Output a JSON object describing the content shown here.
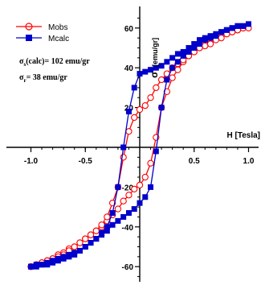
{
  "chart_data": {
    "type": "line",
    "xlabel": "H [Tesla]",
    "ylabel_main": "σ",
    "ylabel_unit": "[emu/gr]",
    "xlim": [
      -1.15,
      1.15
    ],
    "ylim": [
      -68,
      68
    ],
    "x_ticks": [
      "-1.0",
      "-0.5",
      "0.5",
      "1.0"
    ],
    "x_tick_values": [
      -1.0,
      -0.5,
      0.5,
      1.0
    ],
    "y_ticks": [
      "60",
      "40",
      "20",
      "-20",
      "-40",
      "-60"
    ],
    "y_tick_values": [
      60,
      40,
      20,
      -20,
      -40,
      -60
    ],
    "annotations": [
      {
        "main": "σ",
        "sub": "s",
        "text": "(calc)= 102 emu/gr"
      },
      {
        "main": "σ",
        "sub": "r",
        "text": "= 38 emu/gr"
      }
    ],
    "legend_position": "top-left",
    "series": [
      {
        "name": "Mobs",
        "color": "#ff0000",
        "marker": "open-circle",
        "x": [
          -1.0,
          -0.95,
          -0.9,
          -0.85,
          -0.8,
          -0.75,
          -0.7,
          -0.65,
          -0.6,
          -0.55,
          -0.5,
          -0.45,
          -0.4,
          -0.35,
          -0.3,
          -0.25,
          -0.2,
          -0.15,
          -0.1,
          -0.05,
          0.0,
          0.05,
          0.1,
          0.15,
          0.2,
          0.25,
          0.3,
          0.35,
          0.4,
          0.45,
          0.5,
          0.55,
          0.6,
          0.65,
          0.7,
          0.75,
          0.8,
          0.85,
          0.9,
          0.95,
          1.0,
          0.95,
          0.9,
          0.85,
          0.8,
          0.75,
          0.7,
          0.65,
          0.6,
          0.55,
          0.5,
          0.45,
          0.4,
          0.35,
          0.3,
          0.25,
          0.2,
          0.15,
          0.1,
          0.05,
          0.0,
          -0.05,
          -0.1,
          -0.15,
          -0.2,
          -0.25,
          -0.3,
          -0.35,
          -0.4,
          -0.45,
          -0.5,
          -0.55,
          -0.6,
          -0.65,
          -0.7,
          -0.75,
          -0.8,
          -0.85,
          -0.9,
          -0.95,
          -1.0
        ],
        "y": [
          -60,
          -59,
          -58,
          -57,
          -56,
          -54,
          -53,
          -51,
          -50,
          -48,
          -46,
          -44,
          -42,
          -40,
          -37,
          -34,
          -31,
          -27,
          -24,
          -21,
          -19,
          -15,
          -8,
          5,
          20,
          28,
          35,
          39,
          43,
          46,
          48,
          50,
          52,
          54,
          55,
          56,
          57,
          58,
          59,
          60,
          60,
          60,
          59,
          58,
          57,
          55,
          54,
          52,
          51,
          50,
          48,
          46,
          44,
          42,
          40,
          37,
          34,
          30,
          25,
          21,
          19,
          15,
          8,
          -5,
          -20,
          -28,
          -35,
          -39,
          -42,
          -44,
          -46,
          -48,
          -50,
          -52,
          -54,
          -55,
          -56,
          -57,
          -58,
          -59,
          -60
        ]
      },
      {
        "name": "Mcalc",
        "color": "#0000cc",
        "marker": "filled-square",
        "x": [
          -1.0,
          -0.95,
          -0.9,
          -0.85,
          -0.8,
          -0.75,
          -0.7,
          -0.65,
          -0.6,
          -0.55,
          -0.5,
          -0.45,
          -0.4,
          -0.35,
          -0.3,
          -0.25,
          -0.2,
          -0.15,
          -0.1,
          -0.05,
          0.0,
          0.05,
          0.1,
          0.15,
          0.2,
          0.25,
          0.3,
          0.35,
          0.4,
          0.45,
          0.5,
          0.55,
          0.6,
          0.65,
          0.7,
          0.75,
          0.8,
          0.85,
          0.9,
          0.95,
          1.0,
          0.95,
          0.9,
          0.85,
          0.8,
          0.75,
          0.7,
          0.65,
          0.6,
          0.55,
          0.5,
          0.45,
          0.4,
          0.35,
          0.3,
          0.25,
          0.2,
          0.15,
          0.1,
          0.05,
          0.0,
          -0.05,
          -0.1,
          -0.15,
          -0.2,
          -0.25,
          -0.3,
          -0.35,
          -0.4,
          -0.45,
          -0.5,
          -0.55,
          -0.6,
          -0.65,
          -0.7,
          -0.75,
          -0.8,
          -0.85,
          -0.9,
          -0.95,
          -1.0
        ],
        "y": [
          -60,
          -60,
          -59,
          -59,
          -58,
          -57,
          -56,
          -55,
          -54,
          -52,
          -50,
          -48,
          -46,
          -44,
          -42,
          -39,
          -37,
          -35,
          -33,
          -31,
          -28,
          -25,
          -20,
          -2,
          20,
          34,
          40,
          43,
          46,
          48,
          50,
          52,
          54,
          55,
          56,
          58,
          59,
          60,
          61,
          61,
          62,
          61,
          61,
          60,
          59,
          58,
          57,
          56,
          55,
          54,
          52,
          50,
          48,
          47,
          45,
          43,
          41,
          40,
          39,
          38,
          37,
          30,
          18,
          0,
          -20,
          -33,
          -40,
          -43,
          -46,
          -48,
          -50,
          -52,
          -53,
          -54,
          -55,
          -56,
          -57,
          -58,
          -59,
          -59,
          -60
        ]
      }
    ]
  }
}
